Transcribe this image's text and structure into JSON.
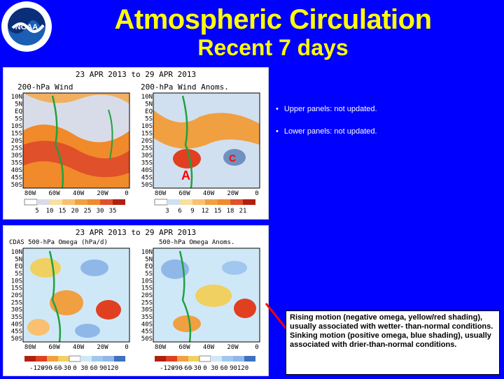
{
  "header": {
    "title": "Atmospheric Circulation",
    "subtitle": "Recent 7 days",
    "logo_text": "NOAA"
  },
  "bullets": [
    "Upper panels: not updated.",
    "Lower panels: not updated."
  ],
  "upper_panel": {
    "date_range": "23 APR 2013 to 29 APR 2013",
    "left_title": "200-hPa Wind",
    "right_title": "200-hPa Wind Anoms.",
    "left_colorbar_labels": [
      "5",
      "10",
      "15",
      "20",
      "25",
      "30",
      "35"
    ],
    "right_colorbar_labels": [
      "3",
      "6",
      "9",
      "12",
      "15",
      "18",
      "21"
    ],
    "marker_a": "A",
    "marker_c": "C"
  },
  "lower_panel": {
    "date_range": "23 APR 2013 to 29 APR 2013",
    "left_title": "CDAS 500-hPa Omega (hPa/d)",
    "right_title": "500-hPa Omega Anoms.",
    "left_colorbar_labels": [
      "-120",
      "-90",
      "-60",
      "-30",
      "0",
      "30",
      "60",
      "90",
      "120"
    ],
    "right_colorbar_labels": [
      "-120",
      "-90",
      "-60",
      "-30",
      "0",
      "30",
      "60",
      "90",
      "120"
    ]
  },
  "lat_labels": [
    "10N",
    "5N",
    "EQ",
    "5S",
    "10S",
    "15S",
    "20S",
    "25S",
    "30S",
    "35S",
    "40S",
    "45S",
    "50S"
  ],
  "lon_labels": [
    "80W",
    "60W",
    "40W",
    "20W",
    "0"
  ],
  "note": {
    "line1": "Rising motion (negative omega, yellow/red shading), usually associated with wetter- than-normal conditions.",
    "line2": "Sinking motion (positive omega, blue shading), usually associated with drier-than-normal conditions."
  },
  "colors": {
    "background": "#0000ff",
    "title": "#ffff00",
    "pointer": "#ff0000"
  }
}
